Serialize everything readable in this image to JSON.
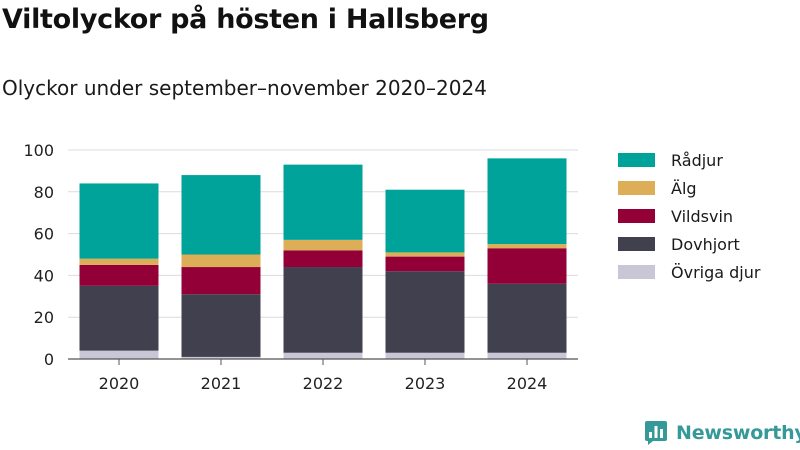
{
  "header": {
    "title": "Viltolyckor på hösten i Hallsberg",
    "subtitle": "Olyckor under september–november 2020–2024"
  },
  "chart_data": {
    "type": "bar",
    "stacked": true,
    "title": "Viltolyckor på hösten i Hallsberg",
    "subtitle": "Olyckor under september–november 2020–2024",
    "xlabel": "",
    "ylabel": "",
    "ylim": [
      0,
      100
    ],
    "yticks": [
      0,
      20,
      40,
      60,
      80,
      100
    ],
    "grid": true,
    "legend_position": "right",
    "categories": [
      "2020",
      "2021",
      "2022",
      "2023",
      "2024"
    ],
    "series": [
      {
        "name": "Övriga djur",
        "color": "#c9c6d6",
        "values": [
          4,
          1,
          3,
          3,
          3
        ]
      },
      {
        "name": "Dovhjort",
        "color": "#40404e",
        "values": [
          31,
          30,
          41,
          39,
          33
        ]
      },
      {
        "name": "Vildsvin",
        "color": "#930038",
        "values": [
          10,
          13,
          8,
          7,
          17
        ]
      },
      {
        "name": "Älg",
        "color": "#dcae58",
        "values": [
          3,
          6,
          5,
          2,
          2
        ]
      },
      {
        "name": "Rådjur",
        "color": "#00a39a",
        "values": [
          36,
          38,
          36,
          30,
          41
        ]
      }
    ]
  },
  "legend": {
    "items": [
      {
        "label": "Rådjur",
        "color": "#00a39a"
      },
      {
        "label": "Älg",
        "color": "#dcae58"
      },
      {
        "label": "Vildsvin",
        "color": "#930038"
      },
      {
        "label": "Dovhjort",
        "color": "#40404e"
      },
      {
        "label": "Övriga djur",
        "color": "#c9c6d6"
      }
    ]
  },
  "brand": {
    "name": "Newsworthy",
    "icon": "newsworthy-logo-icon",
    "color": "#35999a"
  }
}
